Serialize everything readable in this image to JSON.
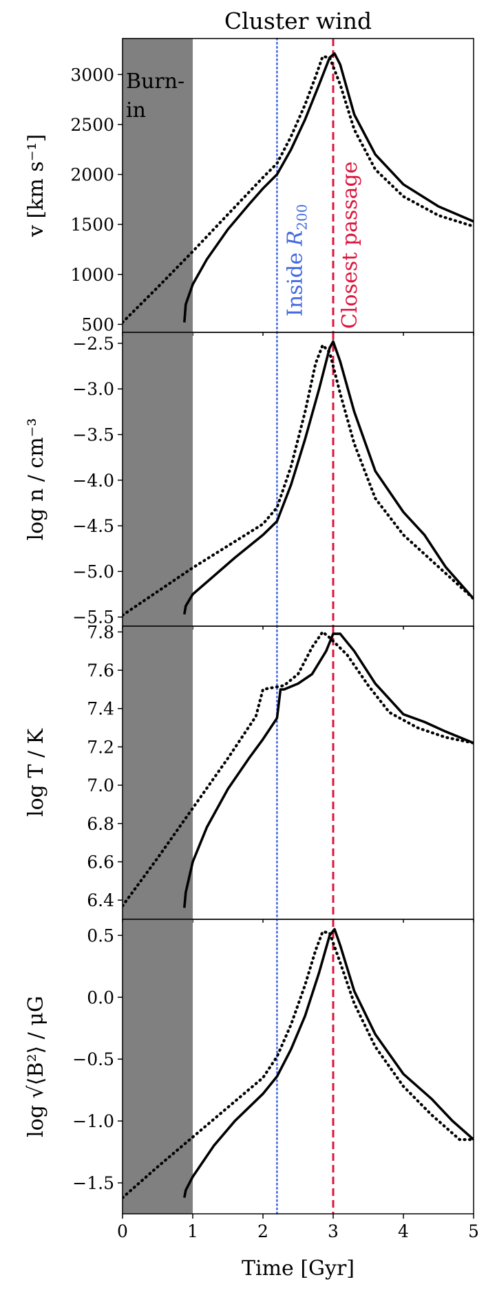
{
  "chart_data": {
    "type": "line",
    "title": "Cluster wind",
    "xlabel": "Time [Gyr]",
    "xlim": [
      0,
      5
    ],
    "x_ticks": [
      0,
      1,
      2,
      3,
      4,
      5
    ],
    "x_tick_labels": [
      "0",
      "1",
      "2",
      "3",
      "4",
      "5"
    ],
    "burn_in": {
      "label_line1": "Burn-",
      "label_line2": "in",
      "x_range": [
        0,
        1
      ],
      "color": "#808080"
    },
    "markers": [
      {
        "name": "inside",
        "label": "Inside R200",
        "label_main": "Inside ",
        "label_sym": "R",
        "label_sub": "200",
        "x": 2.2,
        "color": "#4169E1",
        "style": "dotted"
      },
      {
        "name": "closest",
        "label": "Closest passage",
        "x": 3.0,
        "color": "#DC143C",
        "style": "dashed"
      }
    ],
    "panels": [
      {
        "name": "velocity",
        "ylabel": "v [km s⁻¹]",
        "ylim": [
          420,
          3360
        ],
        "y_ticks": [
          500,
          1000,
          1500,
          2000,
          2500,
          3000
        ],
        "y_tick_labels": [
          "500",
          "1000",
          "1500",
          "2000",
          "2500",
          "3000"
        ],
        "series": [
          {
            "style": "solid",
            "x": [
              0.88,
              0.9,
              1.0,
              1.2,
              1.5,
              1.8,
              2.0,
              2.2,
              2.4,
              2.6,
              2.8,
              2.95,
              3.02,
              3.1,
              3.3,
              3.6,
              4.0,
              4.5,
              5.0
            ],
            "y": [
              520,
              700,
              900,
              1150,
              1450,
              1700,
              1860,
              2000,
              2250,
              2550,
              2900,
              3170,
              3210,
              3100,
              2600,
              2200,
              1900,
              1680,
              1530
            ]
          },
          {
            "style": "dotted",
            "x": [
              0.0,
              0.5,
              1.0,
              1.5,
              2.0,
              2.2,
              2.4,
              2.6,
              2.75,
              2.85,
              2.95,
              3.1,
              3.3,
              3.6,
              4.0,
              4.5,
              5.0
            ],
            "y": [
              520,
              870,
              1230,
              1600,
              1970,
              2110,
              2380,
              2700,
              2980,
              3180,
              3170,
              2900,
              2450,
              2050,
              1780,
              1590,
              1480
            ]
          }
        ]
      },
      {
        "name": "density",
        "ylabel": "log n / cm⁻³",
        "ylim": [
          -5.6,
          -2.38
        ],
        "y_ticks": [
          -5.5,
          -5.0,
          -4.5,
          -4.0,
          -3.5,
          -3.0,
          -2.5
        ],
        "y_tick_labels": [
          "−5.5",
          "−5.0",
          "−4.5",
          "−4.0",
          "−3.5",
          "−3.0",
          "−2.5"
        ],
        "series": [
          {
            "style": "solid",
            "x": [
              0.88,
              0.9,
              1.0,
              1.3,
              1.6,
              2.0,
              2.2,
              2.4,
              2.6,
              2.8,
              2.95,
              3.0,
              3.1,
              3.3,
              3.6,
              4.0,
              4.3,
              4.6,
              5.0
            ],
            "y": [
              -5.47,
              -5.38,
              -5.25,
              -5.05,
              -4.85,
              -4.6,
              -4.45,
              -4.05,
              -3.55,
              -3.0,
              -2.55,
              -2.48,
              -2.7,
              -3.25,
              -3.9,
              -4.35,
              -4.6,
              -4.95,
              -5.3
            ]
          },
          {
            "style": "dotted",
            "x": [
              0.0,
              0.5,
              1.0,
              1.5,
              2.0,
              2.2,
              2.4,
              2.6,
              2.75,
              2.85,
              2.95,
              3.1,
              3.3,
              3.6,
              4.0,
              4.5,
              5.0
            ],
            "y": [
              -5.48,
              -5.22,
              -4.96,
              -4.72,
              -4.48,
              -4.3,
              -3.85,
              -3.25,
              -2.72,
              -2.52,
              -2.6,
              -3.05,
              -3.6,
              -4.2,
              -4.6,
              -4.95,
              -5.3
            ]
          }
        ]
      },
      {
        "name": "temperature",
        "ylabel": "log T / K",
        "ylim": [
          6.3,
          7.83
        ],
        "y_ticks": [
          6.4,
          6.6,
          6.8,
          7.0,
          7.2,
          7.4,
          7.6,
          7.8
        ],
        "y_tick_labels": [
          "6.4",
          "6.6",
          "6.8",
          "7.0",
          "7.2",
          "7.4",
          "7.6",
          "7.8"
        ],
        "series": [
          {
            "style": "solid",
            "x": [
              0.88,
              0.9,
              1.0,
              1.2,
              1.5,
              1.8,
              2.0,
              2.2,
              2.25,
              2.3,
              2.5,
              2.7,
              2.9,
              3.0,
              3.1,
              3.3,
              3.6,
              4.0,
              4.3,
              4.6,
              5.0
            ],
            "y": [
              6.36,
              6.44,
              6.6,
              6.78,
              6.98,
              7.14,
              7.24,
              7.35,
              7.5,
              7.5,
              7.53,
              7.58,
              7.7,
              7.79,
              7.79,
              7.7,
              7.53,
              7.37,
              7.33,
              7.28,
              7.22
            ]
          },
          {
            "style": "dotted",
            "x": [
              0.0,
              0.5,
              1.0,
              1.5,
              1.9,
              2.0,
              2.3,
              2.5,
              2.7,
              2.85,
              2.95,
              3.2,
              3.5,
              3.8,
              4.2,
              4.6,
              5.0
            ],
            "y": [
              6.37,
              6.62,
              6.88,
              7.14,
              7.36,
              7.5,
              7.52,
              7.58,
              7.72,
              7.8,
              7.77,
              7.68,
              7.52,
              7.38,
              7.3,
              7.25,
              7.22
            ]
          }
        ]
      },
      {
        "name": "magnetic-field",
        "ylabel": "log √⟨B²⟩ / μG",
        "ylim": [
          -1.75,
          0.63
        ],
        "y_ticks": [
          -1.5,
          -1.0,
          -0.5,
          0.0,
          0.5
        ],
        "y_tick_labels": [
          "−1.5",
          "−1.0",
          "−0.5",
          "0.0",
          "0.5"
        ],
        "series": [
          {
            "style": "solid",
            "x": [
              0.88,
              0.9,
              1.0,
              1.3,
              1.6,
              2.0,
              2.2,
              2.4,
              2.6,
              2.8,
              2.95,
              3.02,
              3.1,
              3.3,
              3.6,
              4.0,
              4.4,
              4.7,
              5.0
            ],
            "y": [
              -1.62,
              -1.56,
              -1.45,
              -1.2,
              -1.0,
              -0.78,
              -0.64,
              -0.42,
              -0.15,
              0.2,
              0.5,
              0.55,
              0.42,
              0.05,
              -0.3,
              -0.62,
              -0.82,
              -1.0,
              -1.15
            ]
          },
          {
            "style": "dotted",
            "x": [
              0.0,
              0.5,
              1.0,
              1.5,
              2.0,
              2.2,
              2.4,
              2.6,
              2.75,
              2.85,
              2.95,
              3.1,
              3.3,
              3.6,
              4.0,
              4.4,
              4.8,
              5.0
            ],
            "y": [
              -1.62,
              -1.37,
              -1.13,
              -0.89,
              -0.65,
              -0.48,
              -0.22,
              0.1,
              0.38,
              0.53,
              0.52,
              0.28,
              -0.05,
              -0.4,
              -0.72,
              -0.95,
              -1.15,
              -1.15
            ]
          }
        ]
      }
    ]
  }
}
